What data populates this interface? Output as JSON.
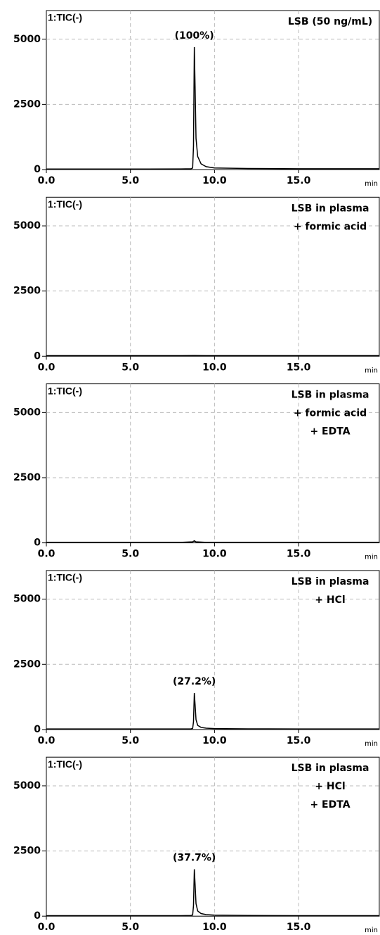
{
  "chart_data": [
    {
      "type": "line",
      "title": "1:TIC(-)",
      "annotations": [
        "LSB (50 ng/mL)"
      ],
      "peak_label": "(100%)",
      "xlabel": "min",
      "x": [
        0,
        2,
        4,
        6,
        8,
        8.6,
        8.7,
        8.75,
        8.8,
        8.85,
        8.9,
        9.0,
        9.2,
        9.5,
        10,
        12,
        15,
        19.8
      ],
      "series": [
        {
          "name": null,
          "color": "#000000",
          "values": [
            20,
            20,
            20,
            20,
            25,
            30,
            60,
            900,
            4700,
            3000,
            1200,
            500,
            220,
            110,
            60,
            40,
            30,
            30
          ]
        }
      ],
      "xlim": [
        0,
        19.8
      ],
      "ylim": [
        0,
        6100
      ],
      "xticks": [
        {
          "value": 0,
          "label": "0.0"
        },
        {
          "value": 5,
          "label": "5.0"
        },
        {
          "value": 10,
          "label": "10.0"
        },
        {
          "value": 15,
          "label": "15.0"
        }
      ],
      "yticks": [
        0,
        2500,
        5000
      ],
      "grid": true
    },
    {
      "type": "line",
      "title": "1:TIC(-)",
      "annotations": [
        "LSB in plasma",
        "+ formic acid"
      ],
      "xlabel": "min",
      "x": [
        0,
        4,
        8,
        8.8,
        9.5,
        12,
        19.8
      ],
      "series": [
        {
          "name": null,
          "color": "#000000",
          "values": [
            20,
            20,
            20,
            25,
            20,
            20,
            20
          ]
        }
      ],
      "xlim": [
        0,
        19.8
      ],
      "ylim": [
        0,
        6100
      ],
      "xticks": [
        {
          "value": 0,
          "label": "0.0"
        },
        {
          "value": 5,
          "label": "5.0"
        },
        {
          "value": 10,
          "label": "10.0"
        },
        {
          "value": 15,
          "label": "15.0"
        }
      ],
      "yticks": [
        0,
        2500,
        5000
      ],
      "grid": true
    },
    {
      "type": "line",
      "title": "1:TIC(-)",
      "annotations": [
        "LSB in plasma",
        "+ formic acid",
        "+ EDTA"
      ],
      "xlabel": "min",
      "x": [
        0,
        4,
        8,
        8.7,
        8.8,
        8.9,
        9.5,
        12,
        19.8
      ],
      "series": [
        {
          "name": null,
          "color": "#000000",
          "values": [
            20,
            20,
            20,
            40,
            80,
            40,
            20,
            20,
            20
          ]
        }
      ],
      "xlim": [
        0,
        19.8
      ],
      "ylim": [
        0,
        6100
      ],
      "xticks": [
        {
          "value": 0,
          "label": "0.0"
        },
        {
          "value": 5,
          "label": "5.0"
        },
        {
          "value": 10,
          "label": "10.0"
        },
        {
          "value": 15,
          "label": "15.0"
        }
      ],
      "yticks": [
        0,
        2500,
        5000
      ],
      "grid": true
    },
    {
      "type": "line",
      "title": "1:TIC(-)",
      "annotations": [
        "LSB in plasma",
        "+ HCl"
      ],
      "peak_label": "(27.2%)",
      "xlabel": "min",
      "x": [
        0,
        2,
        4,
        6,
        8,
        8.6,
        8.7,
        8.75,
        8.8,
        8.85,
        8.9,
        9.0,
        9.2,
        9.5,
        10,
        12,
        15,
        19.8
      ],
      "series": [
        {
          "name": null,
          "color": "#000000",
          "values": [
            20,
            20,
            20,
            20,
            20,
            25,
            40,
            300,
            1400,
            900,
            380,
            160,
            80,
            50,
            35,
            25,
            20,
            20
          ]
        }
      ],
      "xlim": [
        0,
        19.8
      ],
      "ylim": [
        0,
        6100
      ],
      "xticks": [
        {
          "value": 0,
          "label": "0.0"
        },
        {
          "value": 5,
          "label": "5.0"
        },
        {
          "value": 10,
          "label": "10.0"
        },
        {
          "value": 15,
          "label": "15.0"
        }
      ],
      "yticks": [
        0,
        2500,
        5000
      ],
      "grid": true
    },
    {
      "type": "line",
      "title": "1:TIC(-)",
      "annotations": [
        "LSB in plasma",
        "+ HCl",
        "+ EDTA"
      ],
      "peak_label": "(37.7%)",
      "xlabel": "min",
      "x": [
        0,
        2,
        4,
        6,
        8,
        8.6,
        8.7,
        8.75,
        8.8,
        8.85,
        8.9,
        9.0,
        9.2,
        9.5,
        10,
        12,
        15,
        19.8
      ],
      "series": [
        {
          "name": null,
          "color": "#000000",
          "values": [
            20,
            20,
            20,
            20,
            20,
            25,
            45,
            400,
            1800,
            1150,
            480,
            200,
            100,
            60,
            40,
            25,
            20,
            20
          ]
        }
      ],
      "xlim": [
        0,
        19.8
      ],
      "ylim": [
        0,
        6100
      ],
      "xticks": [
        {
          "value": 0,
          "label": "0.0"
        },
        {
          "value": 5,
          "label": "5.0"
        },
        {
          "value": 10,
          "label": "10.0"
        },
        {
          "value": 15,
          "label": "15.0"
        }
      ],
      "yticks": [
        0,
        2500,
        5000
      ],
      "grid": true
    }
  ]
}
